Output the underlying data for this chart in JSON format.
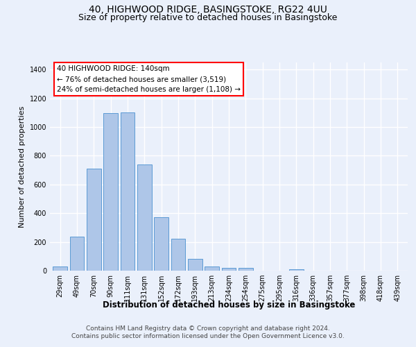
{
  "title1": "40, HIGHWOOD RIDGE, BASINGSTOKE, RG22 4UU",
  "title2": "Size of property relative to detached houses in Basingstoke",
  "xlabel": "Distribution of detached houses by size in Basingstoke",
  "ylabel": "Number of detached properties",
  "categories": [
    "29sqm",
    "49sqm",
    "70sqm",
    "90sqm",
    "111sqm",
    "131sqm",
    "152sqm",
    "172sqm",
    "193sqm",
    "213sqm",
    "234sqm",
    "254sqm",
    "275sqm",
    "295sqm",
    "316sqm",
    "336sqm",
    "357sqm",
    "377sqm",
    "398sqm",
    "418sqm",
    "439sqm"
  ],
  "values": [
    30,
    235,
    710,
    1095,
    1100,
    740,
    370,
    220,
    80,
    30,
    20,
    18,
    0,
    0,
    12,
    0,
    0,
    0,
    0,
    0,
    0
  ],
  "bar_color": "#aec6e8",
  "bar_edge_color": "#5b9bd5",
  "annotation_line1": "40 HIGHWOOD RIDGE: 140sqm",
  "annotation_line2": "← 76% of detached houses are smaller (3,519)",
  "annotation_line3": "24% of semi-detached houses are larger (1,108) →",
  "ylim": [
    0,
    1450
  ],
  "yticks": [
    0,
    200,
    400,
    600,
    800,
    1000,
    1200,
    1400
  ],
  "footnote1": "Contains HM Land Registry data © Crown copyright and database right 2024.",
  "footnote2": "Contains public sector information licensed under the Open Government Licence v3.0.",
  "bg_color": "#eaf0fb",
  "plot_bg_color": "#eaf0fb",
  "grid_color": "#ffffff",
  "title1_fontsize": 10,
  "title2_fontsize": 9,
  "xlabel_fontsize": 8.5,
  "ylabel_fontsize": 8,
  "tick_fontsize": 7,
  "annot_fontsize": 7.5,
  "footnote_fontsize": 6.5
}
